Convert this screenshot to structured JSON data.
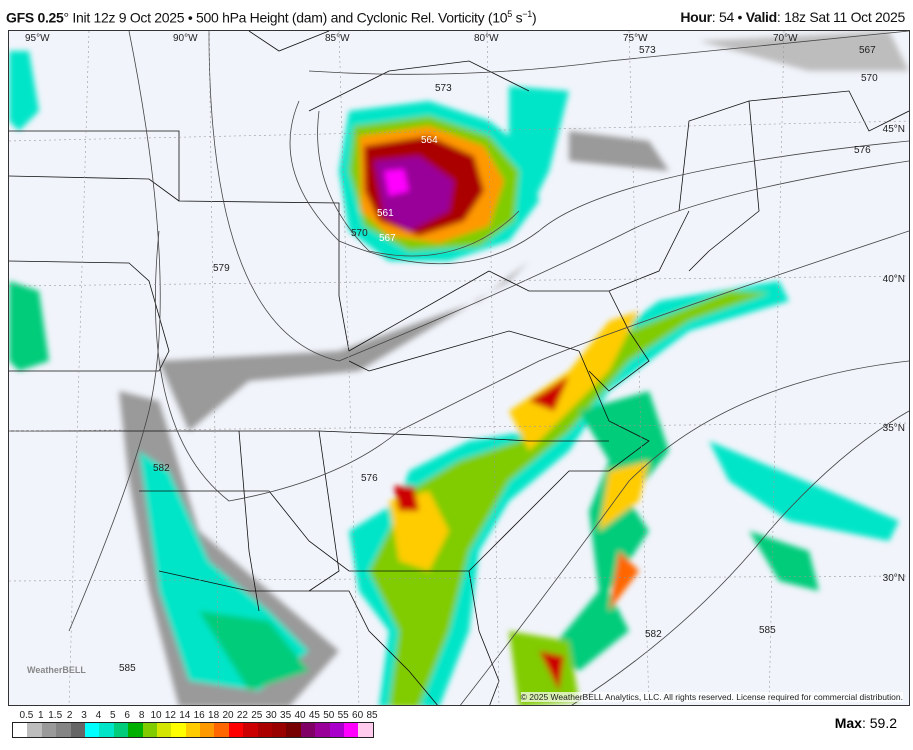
{
  "header": {
    "model": "GFS 0.25",
    "degree": "°",
    "init": " Init 12z 9 Oct 2025 • 500 hPa Height (dam) and Cyclonic Rel. Vorticity (10",
    "exp": "5",
    "unit_tail": " s",
    "unit_exp": "−1",
    "close": ")",
    "hour_label": "Hour",
    "hour": ": 54 • ",
    "valid_label": "Valid",
    "valid": ": 18z Sat 11 Oct 2025"
  },
  "map": {
    "longitudes": [
      "95°W",
      "90°W",
      "85°W",
      "80°W",
      "75°W",
      "70°W"
    ],
    "latitudes": [
      "45°N",
      "40°N",
      "35°N",
      "30°N"
    ],
    "contour_labels": [
      "573",
      "573",
      "567",
      "570",
      "564",
      "561",
      "567",
      "570",
      "576",
      "579",
      "576",
      "582",
      "582",
      "585",
      "585"
    ],
    "copyright": "© 2025 WeatherBELL Analytics, LLC. All rights reserved. License required for commercial distribution.",
    "logo": "WeatherBELL"
  },
  "colorbar": {
    "labels": [
      "0.5",
      "1",
      "1.5",
      "2",
      "3",
      "4",
      "5",
      "6",
      "8",
      "10",
      "12",
      "14",
      "16",
      "18",
      "20",
      "22",
      "25",
      "30",
      "35",
      "40",
      "45",
      "50",
      "55",
      "60",
      "85"
    ],
    "colors": [
      "#ffffff",
      "#bdbdbd",
      "#9a9a9a",
      "#858585",
      "#666666",
      "#00ffff",
      "#00e5c8",
      "#00cc7a",
      "#00b000",
      "#80cc00",
      "#d4e600",
      "#ffff00",
      "#ffcc00",
      "#ff9900",
      "#ff6600",
      "#ff0000",
      "#cc0000",
      "#aa0000",
      "#990000",
      "#770000",
      "#800066",
      "#990099",
      "#aa00cc",
      "#ff00ff",
      "#ffccee"
    ]
  },
  "max": {
    "label": "Max",
    "value": ": 59.2"
  }
}
